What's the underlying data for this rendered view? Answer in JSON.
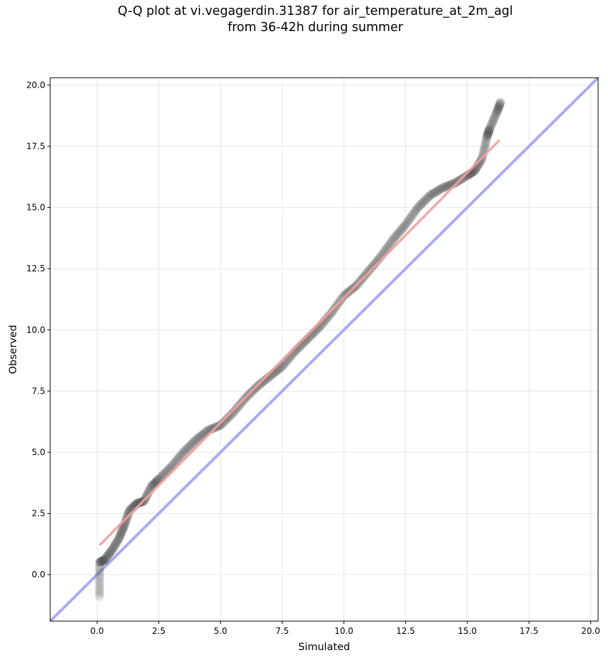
{
  "chart_data": {
    "type": "scatter",
    "title_lines": [
      "Q-Q plot at vi.vegagerdin.31387 for air_temperature_at_2m_agl",
      "from 36-42h during summer"
    ],
    "xlabel": "Simulated",
    "ylabel": "Observed",
    "xlim": [
      -1.9,
      20.3
    ],
    "ylim": [
      -1.9,
      20.3
    ],
    "x_ticks": [
      "0.0",
      "2.5",
      "5.0",
      "7.5",
      "10.0",
      "12.5",
      "15.0",
      "17.5",
      "20.0"
    ],
    "y_ticks": [
      "0.0",
      "2.5",
      "5.0",
      "7.5",
      "10.0",
      "12.5",
      "15.0",
      "17.5",
      "20.0"
    ],
    "grid": true,
    "identity_line": {
      "from": [
        -1.9,
        -1.9
      ],
      "to": [
        20.3,
        20.3
      ],
      "color": "#aaaaf4"
    },
    "fit_line": {
      "from": [
        0.1,
        1.2
      ],
      "to": [
        16.3,
        17.75
      ],
      "color": "#f0a0a0"
    },
    "point_color": "#4d4d4d",
    "quantile_knots": [
      [
        0.1,
        -0.9
      ],
      [
        0.1,
        0.5
      ],
      [
        0.3,
        0.6
      ],
      [
        0.6,
        1.0
      ],
      [
        0.9,
        1.5
      ],
      [
        1.1,
        2.0
      ],
      [
        1.3,
        2.6
      ],
      [
        1.6,
        2.9
      ],
      [
        1.9,
        3.0
      ],
      [
        2.2,
        3.6
      ],
      [
        2.5,
        3.9
      ],
      [
        3.0,
        4.4
      ],
      [
        3.5,
        5.0
      ],
      [
        4.0,
        5.5
      ],
      [
        4.5,
        5.9
      ],
      [
        5.0,
        6.1
      ],
      [
        5.5,
        6.6
      ],
      [
        6.0,
        7.2
      ],
      [
        6.5,
        7.7
      ],
      [
        7.0,
        8.1
      ],
      [
        7.5,
        8.5
      ],
      [
        8.0,
        9.1
      ],
      [
        8.5,
        9.6
      ],
      [
        9.0,
        10.1
      ],
      [
        9.5,
        10.7
      ],
      [
        10.0,
        11.4
      ],
      [
        10.5,
        11.8
      ],
      [
        11.0,
        12.4
      ],
      [
        11.5,
        13.0
      ],
      [
        12.0,
        13.7
      ],
      [
        12.5,
        14.3
      ],
      [
        13.0,
        15.0
      ],
      [
        13.5,
        15.5
      ],
      [
        14.0,
        15.8
      ],
      [
        14.5,
        16.0
      ],
      [
        15.0,
        16.3
      ],
      [
        15.3,
        16.5
      ],
      [
        15.6,
        17.0
      ],
      [
        15.8,
        17.9
      ],
      [
        15.9,
        18.2
      ],
      [
        16.2,
        18.9
      ],
      [
        16.35,
        19.3
      ]
    ],
    "n_points": 620
  }
}
